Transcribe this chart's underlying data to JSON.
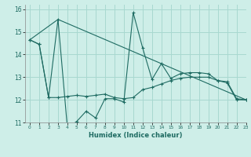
{
  "xlabel": "Humidex (Indice chaleur)",
  "bg_color": "#ceeee8",
  "grid_color": "#a8d8d0",
  "line_color": "#1e6b62",
  "xlim": [
    -0.5,
    23
  ],
  "ylim": [
    11,
    16.2
  ],
  "yticks": [
    11,
    12,
    13,
    14,
    15,
    16
  ],
  "xticks": [
    0,
    1,
    2,
    3,
    4,
    5,
    6,
    7,
    8,
    9,
    10,
    11,
    12,
    13,
    14,
    15,
    16,
    17,
    18,
    19,
    20,
    21,
    22,
    23
  ],
  "line1_x": [
    0,
    1,
    2,
    3,
    4,
    5,
    6,
    7,
    8,
    9,
    10,
    11,
    12,
    13,
    14,
    15,
    16,
    17,
    18,
    19,
    20,
    21,
    22,
    23
  ],
  "line1_y": [
    14.65,
    14.45,
    12.1,
    15.55,
    10.75,
    11.05,
    11.5,
    11.2,
    12.05,
    12.05,
    11.9,
    15.85,
    14.3,
    12.9,
    13.6,
    12.95,
    13.15,
    13.2,
    13.2,
    13.15,
    12.85,
    12.8,
    12.05,
    12.0
  ],
  "line2_x": [
    0,
    1,
    2,
    3,
    4,
    5,
    6,
    7,
    8,
    9,
    10,
    11,
    12,
    13,
    14,
    15,
    16,
    17,
    18,
    19,
    20,
    21,
    22,
    23
  ],
  "line2_y": [
    14.65,
    14.45,
    12.1,
    12.1,
    12.15,
    12.2,
    12.15,
    12.2,
    12.25,
    12.1,
    12.05,
    12.1,
    12.45,
    12.55,
    12.7,
    12.85,
    12.95,
    13.0,
    13.0,
    13.0,
    12.85,
    12.75,
    12.0,
    12.0
  ],
  "line3_x": [
    0,
    3,
    23
  ],
  "line3_y": [
    14.65,
    15.55,
    12.0
  ]
}
